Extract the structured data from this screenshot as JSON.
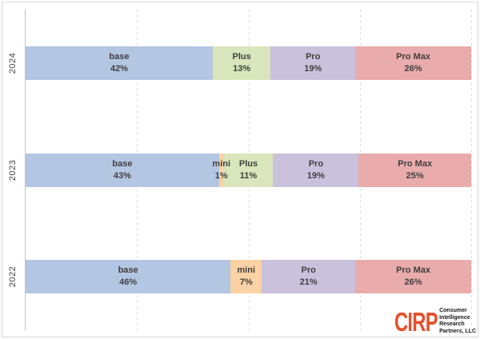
{
  "chart_data": {
    "type": "bar",
    "variant": "horizontal-stacked-100pct",
    "title": "",
    "categories": [
      "2024",
      "2023",
      "2022"
    ],
    "segment_names": [
      "base",
      "mini",
      "Plus",
      "Pro",
      "Pro Max"
    ],
    "rows": [
      {
        "year": "2024",
        "segments": [
          {
            "label": "base",
            "pct": "42%",
            "value": 42,
            "color": "#b3c6e2"
          },
          {
            "label": "Plus",
            "pct": "13%",
            "value": 13,
            "color": "#d9e5bb"
          },
          {
            "label": "Pro",
            "pct": "19%",
            "value": 19,
            "color": "#cac1dd"
          },
          {
            "label": "Pro Max",
            "pct": "26%",
            "value": 26,
            "color": "#e9abab"
          }
        ]
      },
      {
        "year": "2023",
        "segments": [
          {
            "label": "base",
            "pct": "43%",
            "value": 43,
            "color": "#b3c6e2"
          },
          {
            "label": "mini",
            "pct": "1%",
            "value": 1,
            "color": "#fbd2a4"
          },
          {
            "label": "Plus",
            "pct": "11%",
            "value": 11,
            "color": "#d9e5bb"
          },
          {
            "label": "Pro",
            "pct": "19%",
            "value": 19,
            "color": "#cac1dd"
          },
          {
            "label": "Pro Max",
            "pct": "25%",
            "value": 25,
            "color": "#e9abab"
          }
        ]
      },
      {
        "year": "2022",
        "segments": [
          {
            "label": "base",
            "pct": "46%",
            "value": 46,
            "color": "#b3c6e2"
          },
          {
            "label": "mini",
            "pct": "7%",
            "value": 7,
            "color": "#fbd2a4"
          },
          {
            "label": "Pro",
            "pct": "21%",
            "value": 21,
            "color": "#cac1dd"
          },
          {
            "label": "Pro Max",
            "pct": "26%",
            "value": 26,
            "color": "#e9abab"
          }
        ]
      }
    ],
    "x_axis": {
      "range_pct": [
        0,
        100
      ],
      "gridlines_pct": [
        25,
        50,
        75,
        100
      ],
      "gridline_style": "dashed"
    },
    "legend": "none"
  },
  "colors": {
    "base": "#b3c6e2",
    "mini": "#fbd2a4",
    "plus": "#d9e5bb",
    "pro": "#cac1dd",
    "pro_max": "#e9abab",
    "gridline": "#d9d9d9",
    "label_text": "#3f3f3f",
    "logo_orange": "#e4502a"
  },
  "logo": {
    "acronym": "CIRP",
    "lines": [
      "Consumer",
      "Intelligence",
      "Research",
      "Partners, LLC"
    ]
  }
}
